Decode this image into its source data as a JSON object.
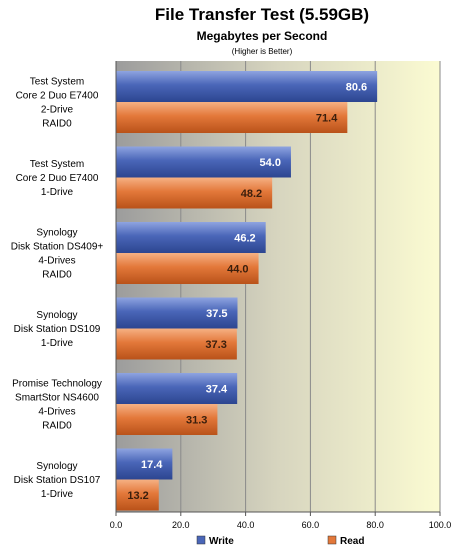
{
  "chart_data": {
    "type": "bar",
    "orientation": "horizontal",
    "title": "File Transfer Test (5.59GB)",
    "subtitle": "Megabytes per Second",
    "note": "(Higher is Better)",
    "categories": [
      [
        "Test System",
        "Core 2 Duo  E7400",
        "2-Drive",
        "RAID0"
      ],
      [
        "Test System",
        "Core 2 Duo  E7400",
        "1-Drive"
      ],
      [
        "Synology",
        "Disk Station DS409+",
        "4-Drives",
        "RAID0"
      ],
      [
        "Synology",
        "Disk Station DS109",
        "1-Drive"
      ],
      [
        "Promise Technology",
        "SmartStor NS4600",
        "4-Drives",
        "RAID0"
      ],
      [
        "Synology",
        "Disk Station DS107",
        "1-Drive"
      ]
    ],
    "series": [
      {
        "name": "Write",
        "values": [
          80.6,
          54.0,
          46.2,
          37.5,
          37.4,
          17.4
        ],
        "labels": [
          "80.6",
          "54.0",
          "46.2",
          "37.5",
          "37.4",
          "17.4"
        ],
        "color": "#4a66b8",
        "label_color": "#ffffff"
      },
      {
        "name": "Read",
        "values": [
          71.4,
          48.2,
          44.0,
          37.3,
          31.3,
          13.2
        ],
        "labels": [
          "71.4",
          "48.2",
          "44.0",
          "37.3",
          "31.3",
          "13.2"
        ],
        "color": "#e3783a",
        "label_color": "#3a1e0c"
      }
    ],
    "xlim": [
      0,
      100
    ],
    "xticks": [
      0,
      20,
      40,
      60,
      80,
      100
    ],
    "xtick_labels": [
      "0.0",
      "20.0",
      "40.0",
      "60.0",
      "80.0",
      "100.0"
    ],
    "grid": true,
    "legend_position": "bottom"
  }
}
